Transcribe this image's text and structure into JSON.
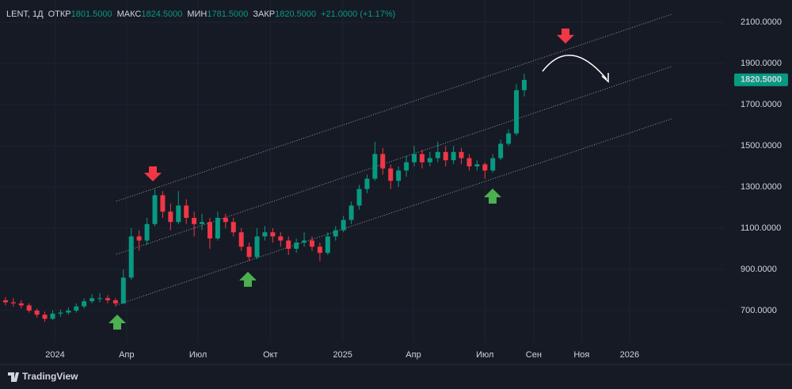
{
  "chart_data": {
    "type": "candlestick",
    "symbol": "LENT, 1Д",
    "ohlc_header": [
      {
        "label": "ОТКР",
        "value": "1801.5000"
      },
      {
        "label": "МАКС",
        "value": "1824.5000"
      },
      {
        "label": "МИН",
        "value": "1781.5000"
      },
      {
        "label": "ЗАКР",
        "value": "1820.5000"
      }
    ],
    "change": "+21.0000 (+1.17%)",
    "last_price": 1820.5,
    "last_price_label": "1820.5000",
    "up_color": "#089981",
    "down_color": "#f23645",
    "grid": true,
    "xlim": [
      "2023-10-23",
      "2026-05-02"
    ],
    "ylim": [
      546,
      2208
    ],
    "xticks": [
      {
        "value": "2024-01-01",
        "label": "2024"
      },
      {
        "value": "2024-04-01",
        "label": "Апр"
      },
      {
        "value": "2024-07-01",
        "label": "Июл"
      },
      {
        "value": "2024-10-01",
        "label": "Окт"
      },
      {
        "value": "2025-01-01",
        "label": "2025"
      },
      {
        "value": "2025-04-01",
        "label": "Апр"
      },
      {
        "value": "2025-07-01",
        "label": "Июл"
      },
      {
        "value": "2025-09-01",
        "label": "Сен"
      },
      {
        "value": "2025-11-01",
        "label": "Ноя"
      },
      {
        "value": "2026-01-01",
        "label": "2026"
      }
    ],
    "yticks": [
      {
        "value": 700,
        "label": "700.0000"
      },
      {
        "value": 900,
        "label": "900.0000"
      },
      {
        "value": 1100,
        "label": "1100.0000"
      },
      {
        "value": 1300,
        "label": "1300.0000"
      },
      {
        "value": 1500,
        "label": "1500.0000"
      },
      {
        "value": 1700,
        "label": "1700.0000"
      },
      {
        "value": 1900,
        "label": "1900.0000"
      },
      {
        "value": 2100,
        "label": "2100.0000"
      }
    ],
    "x": [
      "2023-10-30",
      "2023-11-09",
      "2023-11-19",
      "2023-11-29",
      "2023-12-09",
      "2023-12-19",
      "2023-12-29",
      "2024-01-08",
      "2024-01-18",
      "2024-01-28",
      "2024-02-07",
      "2024-02-17",
      "2024-02-27",
      "2024-03-08",
      "2024-03-18",
      "2024-03-28",
      "2024-04-07",
      "2024-04-17",
      "2024-04-27",
      "2024-05-07",
      "2024-05-17",
      "2024-05-27",
      "2024-06-06",
      "2024-06-16",
      "2024-06-26",
      "2024-07-06",
      "2024-07-16",
      "2024-07-26",
      "2024-08-05",
      "2024-08-15",
      "2024-08-25",
      "2024-09-04",
      "2024-09-14",
      "2024-09-24",
      "2024-10-04",
      "2024-10-14",
      "2024-10-24",
      "2024-11-03",
      "2024-11-13",
      "2024-11-23",
      "2024-12-03",
      "2024-12-13",
      "2024-12-23",
      "2025-01-02",
      "2025-01-12",
      "2025-01-22",
      "2025-02-01",
      "2025-02-11",
      "2025-02-21",
      "2025-03-03",
      "2025-03-13",
      "2025-03-23",
      "2025-04-02",
      "2025-04-12",
      "2025-04-22",
      "2025-05-02",
      "2025-05-12",
      "2025-05-22",
      "2025-06-01",
      "2025-06-11",
      "2025-06-21",
      "2025-07-01",
      "2025-07-11",
      "2025-07-21",
      "2025-07-31",
      "2025-08-10",
      "2025-08-20"
    ],
    "open": [
      750,
      740,
      735,
      725,
      700,
      680,
      660,
      685,
      690,
      700,
      720,
      745,
      760,
      760,
      750,
      735,
      860,
      1060,
      1040,
      1120,
      1260,
      1180,
      1130,
      1210,
      1150,
      1120,
      1130,
      1050,
      1150,
      1130,
      1080,
      1010,
      960,
      1060,
      1080,
      1060,
      1040,
      1000,
      1030,
      1040,
      1010,
      980,
      1060,
      1090,
      1140,
      1210,
      1290,
      1340,
      1460,
      1390,
      1330,
      1380,
      1420,
      1460,
      1420,
      1440,
      1470,
      1430,
      1470,
      1440,
      1400,
      1410,
      1380,
      1440,
      1510,
      1560,
      1770
    ],
    "high": [
      765,
      760,
      750,
      735,
      710,
      695,
      700,
      705,
      715,
      735,
      760,
      780,
      785,
      775,
      760,
      900,
      1100,
      1090,
      1150,
      1290,
      1280,
      1220,
      1280,
      1240,
      1180,
      1170,
      1150,
      1180,
      1170,
      1150,
      1100,
      1030,
      1100,
      1110,
      1100,
      1080,
      1060,
      1050,
      1080,
      1060,
      1030,
      1080,
      1110,
      1160,
      1230,
      1310,
      1360,
      1520,
      1490,
      1410,
      1400,
      1450,
      1500,
      1480,
      1470,
      1520,
      1500,
      1500,
      1490,
      1460,
      1430,
      1420,
      1460,
      1530,
      1580,
      1800,
      1850
    ],
    "low": [
      725,
      720,
      710,
      690,
      665,
      645,
      655,
      670,
      680,
      690,
      710,
      735,
      740,
      735,
      720,
      730,
      850,
      990,
      1020,
      1110,
      1150,
      1090,
      1120,
      1120,
      1060,
      1090,
      1000,
      1040,
      1100,
      1060,
      990,
      940,
      950,
      1040,
      1030,
      1010,
      970,
      980,
      1010,
      990,
      940,
      970,
      1040,
      1080,
      1120,
      1190,
      1270,
      1330,
      1360,
      1290,
      1300,
      1350,
      1400,
      1390,
      1400,
      1420,
      1400,
      1410,
      1410,
      1380,
      1380,
      1340,
      1370,
      1430,
      1500,
      1550,
      1740
    ],
    "close": [
      740,
      735,
      725,
      700,
      680,
      660,
      685,
      690,
      700,
      720,
      745,
      760,
      760,
      750,
      735,
      860,
      1060,
      1040,
      1120,
      1260,
      1180,
      1130,
      1210,
      1150,
      1120,
      1130,
      1050,
      1150,
      1130,
      1080,
      1010,
      960,
      1060,
      1080,
      1060,
      1040,
      1000,
      1030,
      1040,
      1010,
      980,
      1060,
      1090,
      1140,
      1210,
      1290,
      1340,
      1460,
      1390,
      1330,
      1380,
      1420,
      1460,
      1420,
      1440,
      1470,
      1430,
      1470,
      1440,
      1400,
      1410,
      1380,
      1440,
      1510,
      1560,
      1770,
      1820
    ]
  },
  "footer": {
    "brand": "TradingView"
  }
}
